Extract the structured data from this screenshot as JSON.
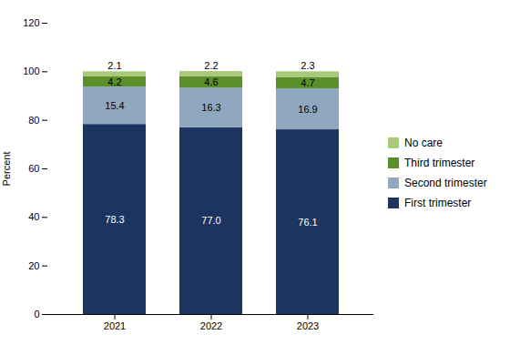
{
  "chart_data": {
    "type": "bar",
    "stacked": true,
    "categories": [
      "2021",
      "2022",
      "2023"
    ],
    "series": [
      {
        "name": "First trimester",
        "color": "#1b3560",
        "values": [
          78.3,
          77.0,
          76.1
        ],
        "value_labels": [
          "78.3",
          "77.0",
          "76.1"
        ]
      },
      {
        "name": "Second trimester",
        "color": "#8fa8bf",
        "values": [
          15.4,
          16.3,
          16.9
        ]
      },
      {
        "name": "Third trimester",
        "color": "#5a8f2a",
        "values": [
          4.2,
          4.6,
          4.7
        ]
      },
      {
        "name": "No care",
        "color": "#a8c87a",
        "values": [
          2.1,
          2.2,
          2.3
        ]
      }
    ],
    "ylabel": "Percent",
    "ylim": [
      0,
      120
    ],
    "yticks": [
      0,
      20,
      40,
      60,
      80,
      100,
      120
    ],
    "grid": false,
    "legend": "right",
    "data_labels": true
  }
}
